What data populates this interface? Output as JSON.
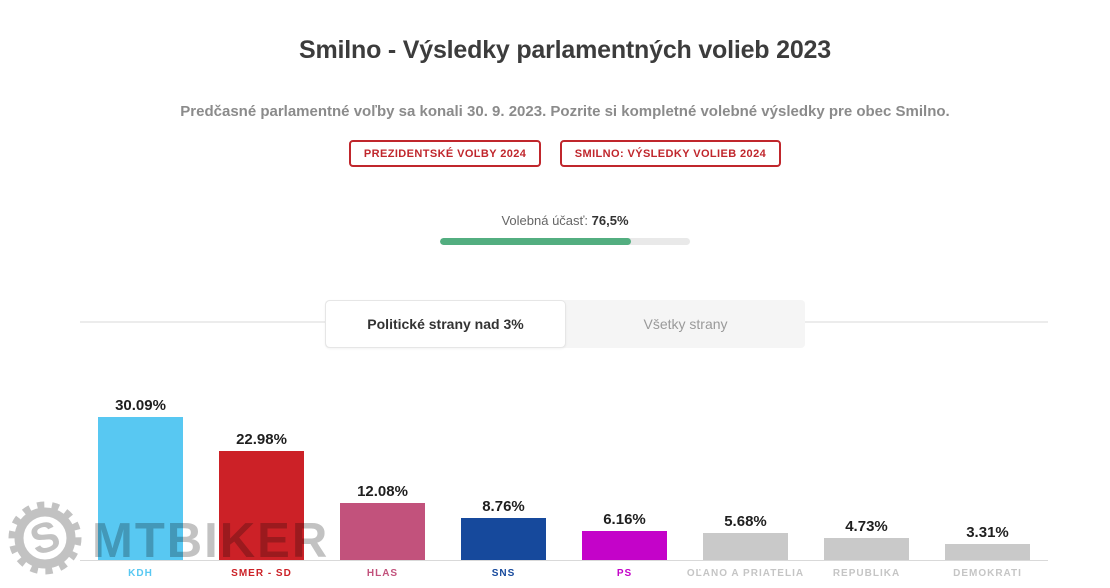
{
  "page": {
    "title": "Smilno - Výsledky parlamentných volieb 2023",
    "subtitle": "Predčasné parlamentné voľby sa konali 30. 9. 2023. Pozrite si kompletné volebné výsledky pre obec Smilno."
  },
  "buttons": [
    {
      "label": "PREZIDENTSKÉ VOĽBY 2024"
    },
    {
      "label": "SMILNO: VÝSLEDKY VOLIEB 2024"
    }
  ],
  "button_color": "#c0262c",
  "turnout": {
    "label": "Volebná účasť:",
    "value": "76,5%",
    "percent": 76.5,
    "fill_color": "#53ae80",
    "track_color": "#e9e9e9"
  },
  "tabs": [
    {
      "label": "Politické strany nad 3%",
      "active": true
    },
    {
      "label": "Všetky strany",
      "active": false
    }
  ],
  "watermark": {
    "text": "MTBIKER",
    "icon": "gear-sprocket-icon"
  },
  "chart_data": {
    "type": "bar",
    "title": "Smilno - Výsledky parlamentných volieb 2023",
    "categories": [
      "KDH",
      "SMER - SD",
      "HLAS",
      "SNS",
      "PS",
      "OĽANO A PRIATELIA",
      "REPUBLIKA",
      "DEMOKRATI"
    ],
    "values": [
      30.09,
      22.98,
      12.08,
      8.76,
      6.16,
      5.68,
      4.73,
      3.31
    ],
    "value_labels": [
      "30.09%",
      "22.98%",
      "12.08%",
      "8.76%",
      "6.16%",
      "5.68%",
      "4.73%",
      "3.31%"
    ],
    "bar_colors": [
      "#58c8f2",
      "#cc2127",
      "#c2527c",
      "#16499c",
      "#c403c9",
      "#c9c9c9",
      "#c9c9c9",
      "#c9c9c9"
    ],
    "label_colors": [
      "#58c8f2",
      "#cc2127",
      "#c2527c",
      "#16499c",
      "#c403c9",
      "#c5c5c5",
      "#c5c5c5",
      "#c5c5c5"
    ],
    "xlabel": "",
    "ylabel": "",
    "ylim": [
      0,
      32
    ],
    "grid": false,
    "legend": false,
    "baseline_color": "#d9d9d9"
  }
}
